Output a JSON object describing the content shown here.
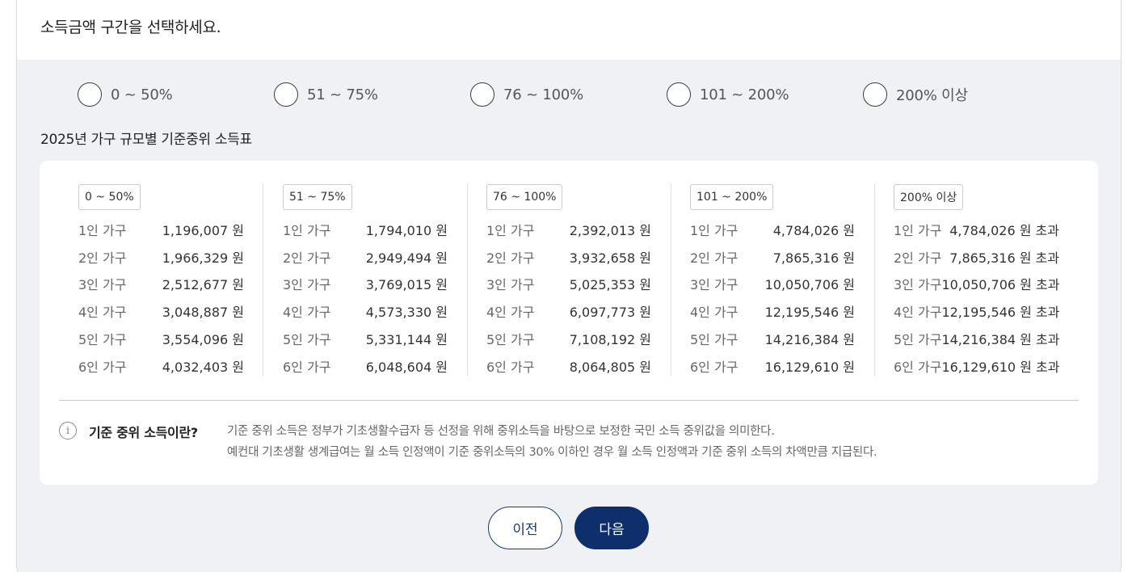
{
  "question": "소득금액 구간을 선택하세요.",
  "radio_options": [
    {
      "label": "0 ~ 50%"
    },
    {
      "label": "51 ~ 75%"
    },
    {
      "label": "76 ~ 100%"
    },
    {
      "label": "101 ~ 200%"
    },
    {
      "label": "200% 이상"
    }
  ],
  "table_title": "2025년 가구 규모별 기준중위 소득표",
  "tiers": [
    {
      "label": "0 ~ 50%",
      "rows": [
        {
          "household": "1인 가구",
          "amount": "1,196,007 원"
        },
        {
          "household": "2인 가구",
          "amount": "1,966,329 원"
        },
        {
          "household": "3인 가구",
          "amount": "2,512,677 원"
        },
        {
          "household": "4인 가구",
          "amount": "3,048,887 원"
        },
        {
          "household": "5인 가구",
          "amount": "3,554,096 원"
        },
        {
          "household": "6인 가구",
          "amount": "4,032,403 원"
        }
      ]
    },
    {
      "label": "51 ~ 75%",
      "rows": [
        {
          "household": "1인 가구",
          "amount": "1,794,010 원"
        },
        {
          "household": "2인 가구",
          "amount": "2,949,494 원"
        },
        {
          "household": "3인 가구",
          "amount": "3,769,015 원"
        },
        {
          "household": "4인 가구",
          "amount": "4,573,330 원"
        },
        {
          "household": "5인 가구",
          "amount": "5,331,144 원"
        },
        {
          "household": "6인 가구",
          "amount": "6,048,604 원"
        }
      ]
    },
    {
      "label": "76 ~ 100%",
      "rows": [
        {
          "household": "1인 가구",
          "amount": "2,392,013 원"
        },
        {
          "household": "2인 가구",
          "amount": "3,932,658 원"
        },
        {
          "household": "3인 가구",
          "amount": "5,025,353 원"
        },
        {
          "household": "4인 가구",
          "amount": "6,097,773 원"
        },
        {
          "household": "5인 가구",
          "amount": "7,108,192 원"
        },
        {
          "household": "6인 가구",
          "amount": "8,064,805 원"
        }
      ]
    },
    {
      "label": "101 ~ 200%",
      "rows": [
        {
          "household": "1인 가구",
          "amount": "4,784,026 원"
        },
        {
          "household": "2인 가구",
          "amount": "7,865,316 원"
        },
        {
          "household": "3인 가구",
          "amount": "10,050,706 원"
        },
        {
          "household": "4인 가구",
          "amount": "12,195,546 원"
        },
        {
          "household": "5인 가구",
          "amount": "14,216,384 원"
        },
        {
          "household": "6인 가구",
          "amount": "16,129,610 원"
        }
      ]
    },
    {
      "label": "200% 이상",
      "rows": [
        {
          "household": "1인 가구",
          "amount": "4,784,026 원 초과"
        },
        {
          "household": "2인 가구",
          "amount": "7,865,316 원 초과"
        },
        {
          "household": "3인 가구",
          "amount": "10,050,706 원 초과"
        },
        {
          "household": "4인 가구",
          "amount": "12,195,546 원 초과"
        },
        {
          "household": "5인 가구",
          "amount": "14,216,384 원 초과"
        },
        {
          "household": "6인 가구",
          "amount": "16,129,610 원 초과"
        }
      ]
    }
  ],
  "info": {
    "icon": "info-icon",
    "term": "기준 중위 소득이란?",
    "line1": "기준 중위 소득은 정부가 기초생활수급자 등 선정을 위해 중위소득을 바탕으로 보정한 국민 소득 중위값을 의미한다.",
    "line2": "예컨대 기초생활 생계급여는 월 소득 인정액이 기준 중위소득의 30% 이하인 경우 월 소득 인정액과 기준 중위 소득의 차액만큼 지급된다."
  },
  "buttons": {
    "prev": "이전",
    "next": "다음"
  },
  "colors": {
    "primary": "#0e2f6b",
    "panel_bg": "#eff1f5"
  }
}
